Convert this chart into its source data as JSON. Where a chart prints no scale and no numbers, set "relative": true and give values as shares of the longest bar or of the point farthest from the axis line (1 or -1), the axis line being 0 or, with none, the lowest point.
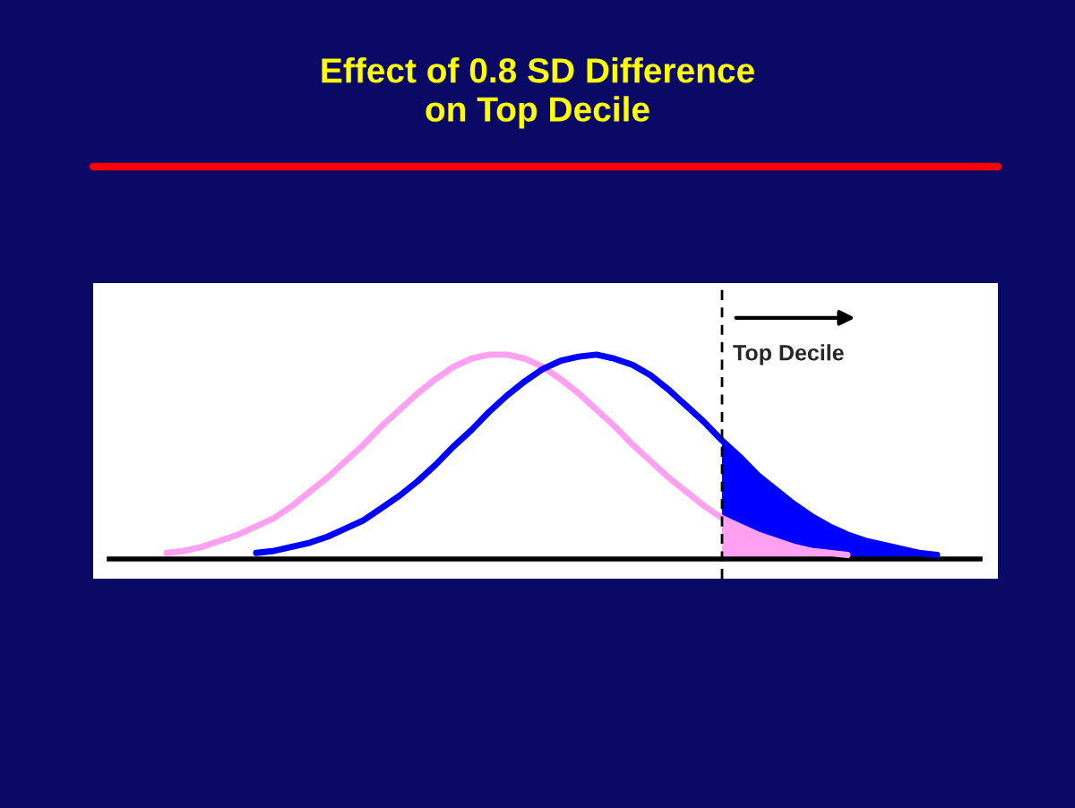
{
  "chart_data": {
    "type": "line",
    "title": "Effect of 0.8 SD Difference\non Top Decile",
    "relative": true,
    "categories": [
      null,
      null,
      null,
      null,
      null,
      null,
      null,
      null,
      null,
      null,
      null,
      null,
      null,
      null,
      null,
      null,
      null,
      null,
      null,
      null,
      null,
      null,
      null,
      null,
      null,
      null,
      null,
      null,
      null,
      null,
      null,
      null,
      null,
      null,
      null,
      null,
      null,
      null,
      null,
      null,
      null,
      null,
      null,
      null,
      null,
      null,
      null,
      null,
      null
    ],
    "series": [
      {
        "type": "area",
        "color": "#0000ff",
        "values": [
          null,
          null,
          null,
          null,
          null,
          null,
          null,
          null,
          null,
          null,
          null,
          null,
          null,
          null,
          null,
          null,
          null,
          null,
          null,
          null,
          null,
          null,
          null,
          null,
          null,
          null,
          null,
          null,
          null,
          null,
          null,
          null,
          null,
          null,
          0.58,
          0.5,
          0.41,
          0.34,
          0.27,
          0.21,
          0.16,
          0.12,
          0.09,
          0.07,
          0.05,
          0.03,
          0.02,
          null,
          null
        ]
      },
      {
        "type": "area",
        "color": "#ffa0f0",
        "values": [
          null,
          null,
          null,
          null,
          null,
          null,
          null,
          null,
          null,
          null,
          null,
          null,
          null,
          null,
          null,
          null,
          null,
          null,
          null,
          null,
          null,
          null,
          null,
          null,
          null,
          null,
          null,
          null,
          null,
          null,
          null,
          null,
          null,
          null,
          0.2,
          0.16,
          0.12,
          0.09,
          0.06,
          0.04,
          0.03,
          0.02,
          null,
          null,
          null,
          null,
          null,
          null,
          null
        ]
      },
      {
        "color": "#ffa0f0",
        "values": [
          null,
          null,
          null,
          0.03,
          0.04,
          0.06,
          0.09,
          0.12,
          0.16,
          0.2,
          0.26,
          0.33,
          0.4,
          0.48,
          0.56,
          0.65,
          0.73,
          0.81,
          0.88,
          0.94,
          0.98,
          1.0,
          1.0,
          0.98,
          0.94,
          0.88,
          0.81,
          0.73,
          0.65,
          0.56,
          0.48,
          0.4,
          0.33,
          0.26,
          0.2,
          0.16,
          0.12,
          0.09,
          0.06,
          0.04,
          0.03,
          0.02,
          null,
          null,
          null,
          null,
          null,
          null,
          null
        ]
      },
      {
        "color": "#0000ff",
        "values": [
          null,
          null,
          null,
          null,
          null,
          null,
          null,
          null,
          0.03,
          0.04,
          0.06,
          0.08,
          0.11,
          0.15,
          0.19,
          0.25,
          0.31,
          0.38,
          0.46,
          0.55,
          0.63,
          0.72,
          0.8,
          0.87,
          0.93,
          0.97,
          0.99,
          1.0,
          0.98,
          0.95,
          0.9,
          0.83,
          0.75,
          0.67,
          0.58,
          0.5,
          0.41,
          0.34,
          0.27,
          0.21,
          0.16,
          0.12,
          0.09,
          0.07,
          0.05,
          0.03,
          0.02,
          null,
          null
        ]
      }
    ],
    "annotations": [
      "Top Decile"
    ]
  }
}
